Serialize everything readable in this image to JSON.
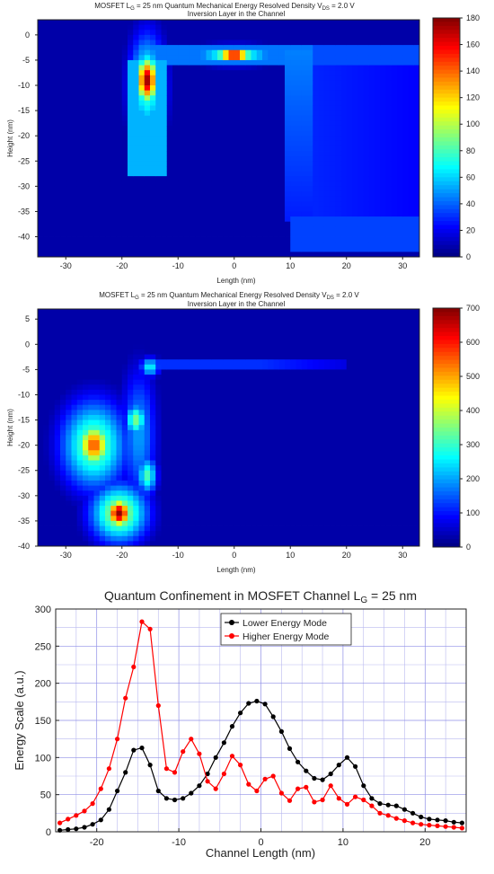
{
  "chart_data": [
    {
      "type": "heatmap",
      "title": "MOSFET L",
      "title_sub": "G",
      "title_mid": " = 25 nm Quantum Mechanical Energy Resolved Density V",
      "title_sub2": "DS",
      "title_end": " = 2.0 V",
      "subtitle": "Inversion Layer in the Channel",
      "xlabel": "Length (nm)",
      "ylabel": "Height (nm)",
      "xticks": [
        -30,
        -20,
        -10,
        0,
        10,
        20,
        30
      ],
      "yticks": [
        0,
        -5,
        -10,
        -15,
        -20,
        -25,
        -30,
        -35,
        -40
      ],
      "xlim": [
        -35,
        33
      ],
      "ylim": [
        -44,
        3
      ],
      "colorbar": {
        "min": 0,
        "max": 180,
        "ticks": [
          0,
          20,
          40,
          60,
          80,
          100,
          120,
          140,
          160,
          180
        ]
      },
      "hotspots": [
        {
          "x": -15.5,
          "y": -9,
          "value": 175
        },
        {
          "x": 0,
          "y": -4,
          "value": 180
        }
      ],
      "colormap": "jet"
    },
    {
      "type": "heatmap",
      "title": "MOSFET L",
      "title_sub": "G",
      "title_mid": " = 25 nm Quantum Mechanical Energy Resolved Density V",
      "title_sub2": "DS",
      "title_end": " = 2.0 V",
      "subtitle": "Inversion Layer in the Channel",
      "xlabel": "Length (nm)",
      "ylabel": "Height (nm)",
      "xticks": [
        -30,
        -20,
        -10,
        0,
        10,
        20,
        30
      ],
      "yticks": [
        5,
        0,
        -5,
        -10,
        -15,
        -20,
        -25,
        -30,
        -35,
        -40
      ],
      "xlim": [
        -35,
        33
      ],
      "ylim": [
        -40,
        7
      ],
      "colorbar": {
        "min": 0,
        "max": 700,
        "ticks": [
          0,
          100,
          200,
          300,
          400,
          500,
          600,
          700
        ]
      },
      "hotspots": [
        {
          "x": -20.5,
          "y": -33.5,
          "value": 690
        },
        {
          "x": -25,
          "y": -20,
          "value": 560
        },
        {
          "x": -17.5,
          "y": -15,
          "value": 330
        },
        {
          "x": -15.5,
          "y": -26,
          "value": 300
        },
        {
          "x": -15,
          "y": -4.5,
          "value": 250
        }
      ],
      "colormap": "jet"
    },
    {
      "type": "line",
      "title": "Quantum Confinement in MOSFET Channel L",
      "title_sub": "G",
      "title_end": " = 25 nm",
      "xlabel": "Channel Length (nm)",
      "ylabel": "Energy Scale (a.u.)",
      "xlim": [
        -25,
        25
      ],
      "ylim": [
        0,
        300
      ],
      "xticks": [
        -20,
        -10,
        0,
        10,
        20
      ],
      "yticks": [
        0,
        50,
        100,
        150,
        200,
        250,
        300
      ],
      "grid": true,
      "legend_position": "top-center",
      "series": [
        {
          "name": "Lower Energy Mode",
          "color": "#000000",
          "x": [
            -24.5,
            -23.5,
            -22.5,
            -21.5,
            -20.5,
            -19.5,
            -18.5,
            -17.5,
            -16.5,
            -15.5,
            -14.5,
            -13.5,
            -12.5,
            -11.5,
            -10.5,
            -9.5,
            -8.5,
            -7.5,
            -6.5,
            -5.5,
            -4.5,
            -3.5,
            -2.5,
            -1.5,
            -0.5,
            0.5,
            1.5,
            2.5,
            3.5,
            4.5,
            5.5,
            6.5,
            7.5,
            8.5,
            9.5,
            10.5,
            11.5,
            12.5,
            13.5,
            14.5,
            15.5,
            16.5,
            17.5,
            18.5,
            19.5,
            20.5,
            21.5,
            22.5,
            23.5,
            24.5
          ],
          "values": [
            2,
            3,
            4,
            6,
            10,
            16,
            30,
            55,
            80,
            110,
            113,
            90,
            55,
            45,
            43,
            45,
            52,
            62,
            78,
            100,
            120,
            142,
            160,
            173,
            176,
            172,
            155,
            135,
            112,
            94,
            82,
            72,
            70,
            78,
            90,
            100,
            88,
            62,
            45,
            38,
            36,
            35,
            30,
            25,
            20,
            17,
            16,
            15,
            13,
            12
          ]
        },
        {
          "name": "Higher Energy Mode",
          "color": "#ff0000",
          "x": [
            -24.5,
            -23.5,
            -22.5,
            -21.5,
            -20.5,
            -19.5,
            -18.5,
            -17.5,
            -16.5,
            -15.5,
            -14.5,
            -13.5,
            -12.5,
            -11.5,
            -10.5,
            -9.5,
            -8.5,
            -7.5,
            -6.5,
            -5.5,
            -4.5,
            -3.5,
            -2.5,
            -1.5,
            -0.5,
            0.5,
            1.5,
            2.5,
            3.5,
            4.5,
            5.5,
            6.5,
            7.5,
            8.5,
            9.5,
            10.5,
            11.5,
            12.5,
            13.5,
            14.5,
            15.5,
            16.5,
            17.5,
            18.5,
            19.5,
            20.5,
            21.5,
            22.5,
            23.5,
            24.5
          ],
          "values": [
            12,
            17,
            22,
            28,
            38,
            58,
            85,
            125,
            180,
            222,
            283,
            273,
            170,
            85,
            80,
            108,
            125,
            105,
            68,
            58,
            78,
            102,
            90,
            64,
            55,
            71,
            75,
            52,
            42,
            58,
            60,
            40,
            43,
            62,
            45,
            37,
            47,
            43,
            35,
            25,
            22,
            18,
            15,
            12,
            10,
            9,
            8,
            7,
            6,
            5
          ]
        }
      ]
    }
  ]
}
